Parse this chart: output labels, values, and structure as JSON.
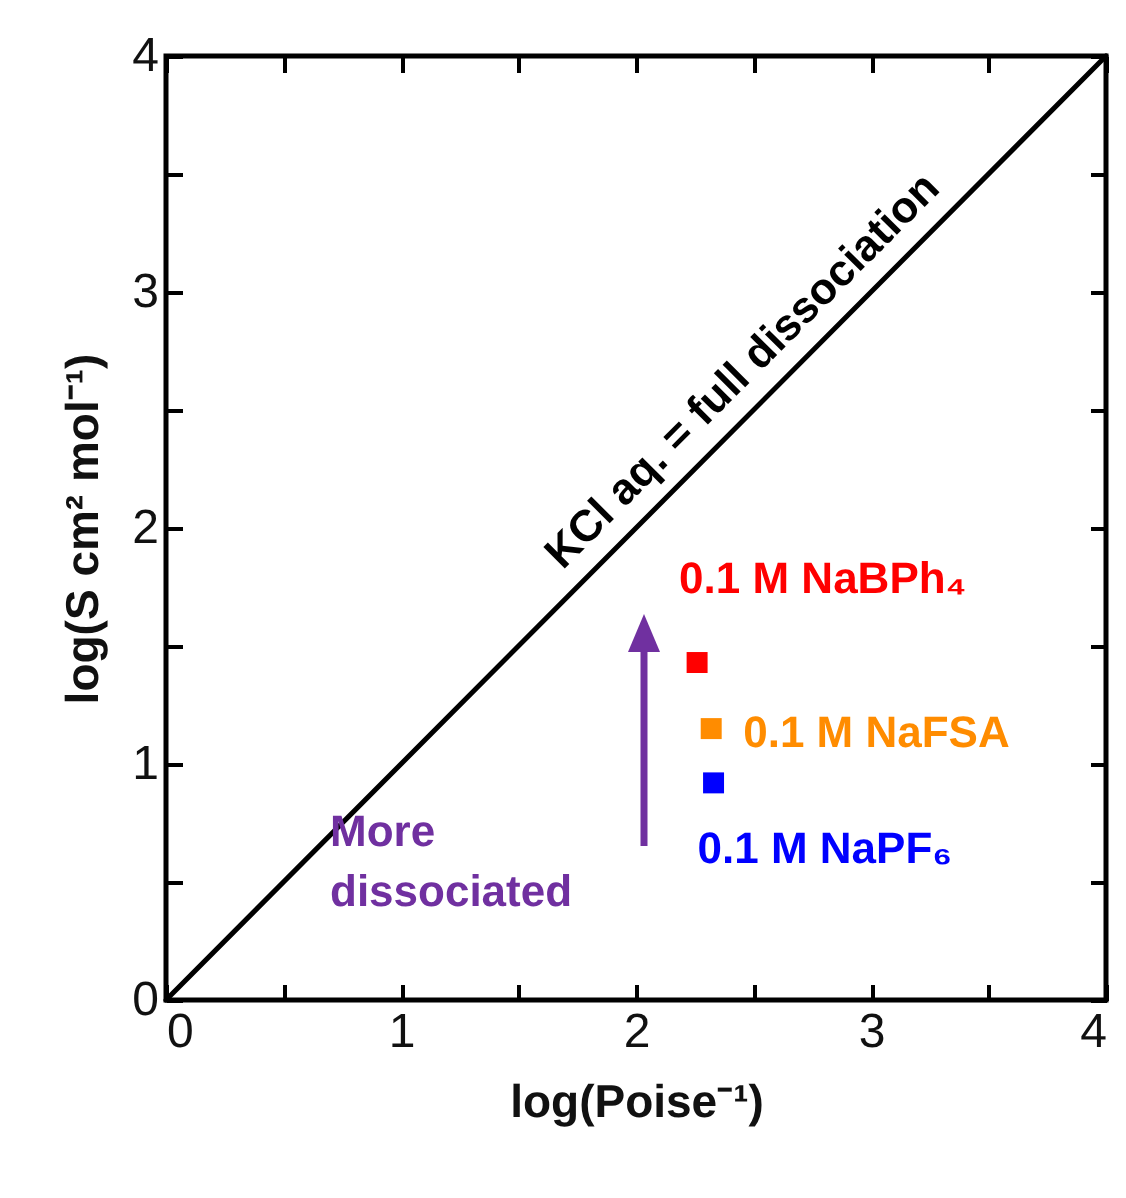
{
  "chart_data": {
    "type": "scatter",
    "xlabel": "log(Poise⁻¹)",
    "ylabel": "log(S cm² mol⁻¹)",
    "xlim": [
      0,
      4
    ],
    "ylim": [
      0,
      4
    ],
    "xticks": [
      0,
      {
        "value": 0.5,
        "label": null
      },
      1,
      {
        "value": 1.5,
        "label": null
      },
      2,
      {
        "value": 2.5,
        "label": null
      },
      3,
      {
        "value": 3.5,
        "label": null
      },
      4
    ],
    "yticks": [
      0,
      {
        "value": 0.5,
        "label": null
      },
      1,
      {
        "value": 1.5,
        "label": null
      },
      2,
      {
        "value": 2.5,
        "label": null
      },
      3,
      {
        "value": 3.5,
        "label": null
      },
      4
    ],
    "grid": false,
    "marker": "square",
    "series": [
      {
        "name": "KCl aq. = full dissociation",
        "type": "line",
        "marker": "none",
        "color": "#000000",
        "x": [
          0,
          4
        ],
        "values": [
          0,
          4
        ]
      },
      {
        "name": "0.1 M NaBPh₄",
        "color": "#ff0000",
        "x": [
          2.26
        ],
        "values": [
          1.43
        ]
      },
      {
        "name": "0.1 M NaFSA",
        "color": "#ff8c00",
        "x": [
          2.32
        ],
        "values": [
          1.15
        ]
      },
      {
        "name": "0.1 M NaPF₆",
        "color": "#0000ff",
        "x": [
          2.33
        ],
        "values": [
          0.92
        ]
      }
    ],
    "annotations": [
      "More dissociated"
    ]
  }
}
